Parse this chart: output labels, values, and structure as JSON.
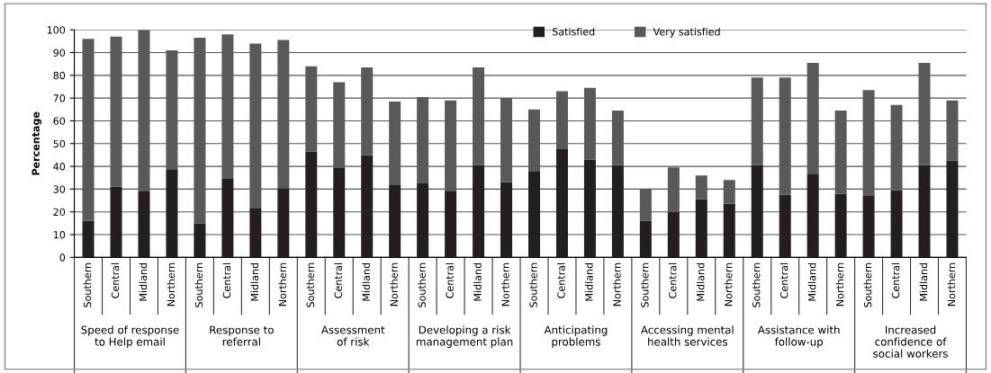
{
  "chart_data": {
    "type": "bar",
    "stacked": true,
    "ylabel": "Percentage",
    "ylim": [
      0,
      100
    ],
    "yticks": [
      0,
      10,
      20,
      30,
      40,
      50,
      60,
      70,
      80,
      90,
      100
    ],
    "grid": "y",
    "legend": "top",
    "categories": [
      "Southern",
      "Central",
      "Midland",
      "Northern",
      "Southern",
      "Central",
      "Midland",
      "Northern",
      "Southern",
      "Central",
      "Midland",
      "Northern",
      "Southern",
      "Central",
      "Midland",
      "Northern",
      "Southern",
      "Central",
      "Midland",
      "Northern",
      "Southern",
      "Central",
      "Midland",
      "Northern",
      "Southern",
      "Central",
      "Midland",
      "Northern",
      "Southern",
      "Central",
      "Midland",
      "Northern"
    ],
    "series": [
      {
        "name": "Satisfied",
        "color": "#231f20",
        "values": [
          16,
          31,
          29,
          38.5,
          15,
          34.5,
          21.5,
          30.5,
          46.5,
          39.5,
          45,
          32,
          32.5,
          29,
          40.5,
          33,
          38,
          47.5,
          43,
          40.5,
          16,
          20,
          25.5,
          23.5,
          40.5,
          27.5,
          36.5,
          28,
          27,
          29.5,
          40.5,
          42.5
        ]
      },
      {
        "name": "Very satisfied",
        "color": "#58595b",
        "values": [
          80,
          66,
          71,
          52.5,
          81.5,
          63.5,
          72.5,
          65,
          37.5,
          37.5,
          38.5,
          36.5,
          38,
          40,
          43,
          37,
          27,
          25.5,
          31.5,
          24,
          14,
          19.5,
          10.5,
          10.5,
          38.5,
          51.5,
          49,
          36.5,
          46.5,
          37.5,
          45,
          26.5
        ]
      }
    ],
    "annotations": [
      "Speed of response\nto Help email",
      "Response to\nreferral",
      "Assessment\nof risk",
      "Developing a risk\nmanagement plan",
      "Anticipating\nproblems",
      "Accessing mental\nhealth services",
      "Assistance with\nfollow-up",
      "Increased\nconfidence of\nsocial workers"
    ]
  }
}
